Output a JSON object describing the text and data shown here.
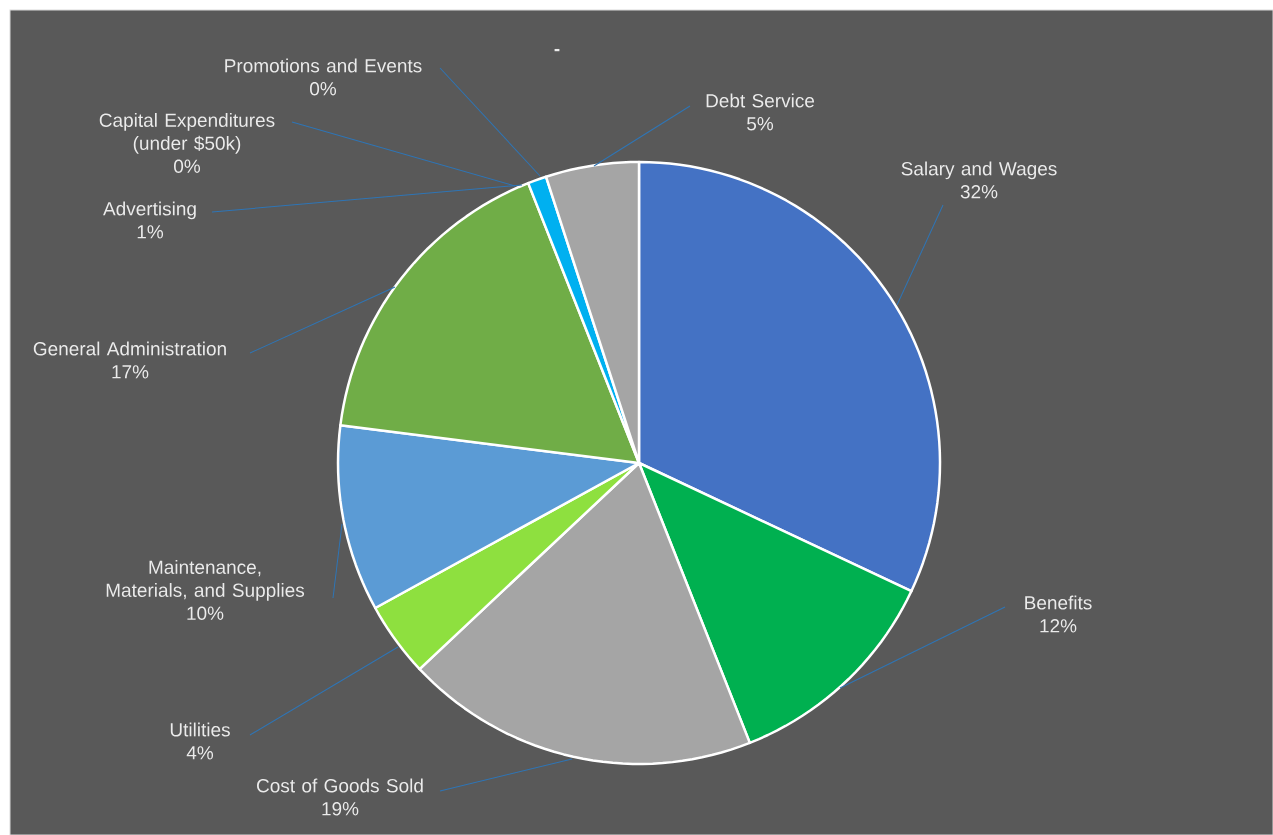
{
  "chart_data": {
    "type": "pie",
    "title": "-",
    "categories": [
      "Salary and Wages",
      "Benefits",
      "Cost of Goods Sold",
      "Utilities",
      "Maintenance, Materials, and Supplies",
      "General Administration",
      "Advertising",
      "Capital Expenditures (under $50k)",
      "Promotions and Events",
      "Debt Service"
    ],
    "values": [
      32,
      12,
      19,
      4,
      10,
      17,
      1,
      0,
      0,
      5
    ],
    "value_labels": [
      "32%",
      "12%",
      "19%",
      "4%",
      "10%",
      "17%",
      "1%",
      "0%",
      "0%",
      "5%"
    ],
    "colors": [
      "#4472c4",
      "#00b050",
      "#a5a5a5",
      "#8ee03f",
      "#5b9bd5",
      "#70ad47",
      "#00b0f0",
      "#ffffff",
      "#002060",
      "#a5a5a5"
    ]
  }
}
